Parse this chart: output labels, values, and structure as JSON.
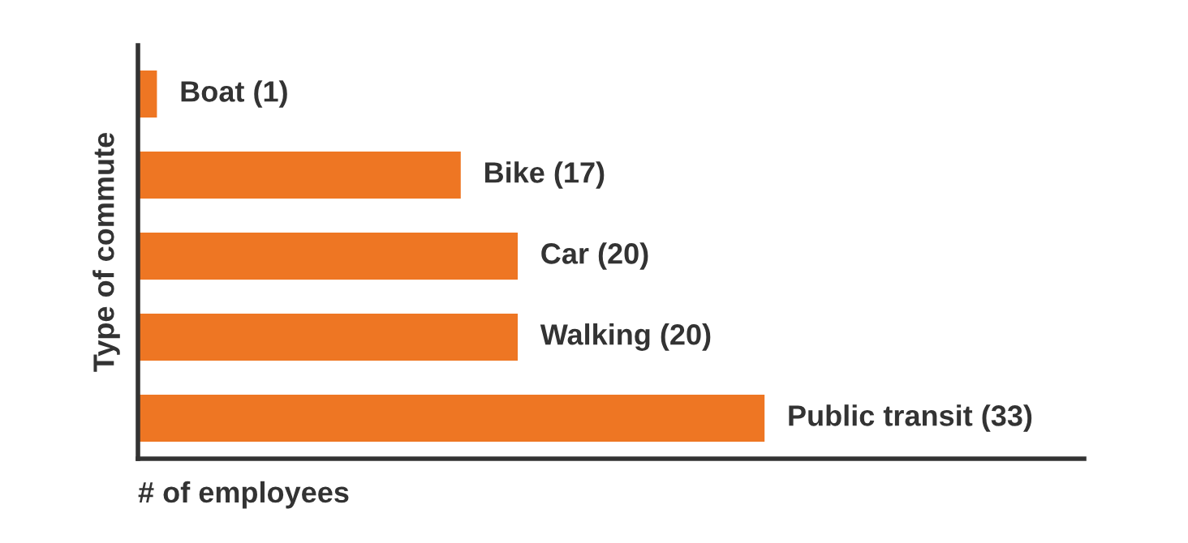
{
  "chart_data": {
    "type": "bar",
    "orientation": "horizontal",
    "xlabel": "# of employees",
    "ylabel": "Type of commute",
    "categories": [
      null,
      null,
      null,
      null,
      null
    ],
    "values": [
      1,
      17,
      20,
      20,
      33
    ],
    "value_labels": [
      "Boat (1)",
      "Bike (17)",
      "Car (20)",
      "Walking (20)",
      "Public transit (33)"
    ],
    "color": "#ee7623",
    "tick_labels": false,
    "grid": false,
    "legend": false
  }
}
